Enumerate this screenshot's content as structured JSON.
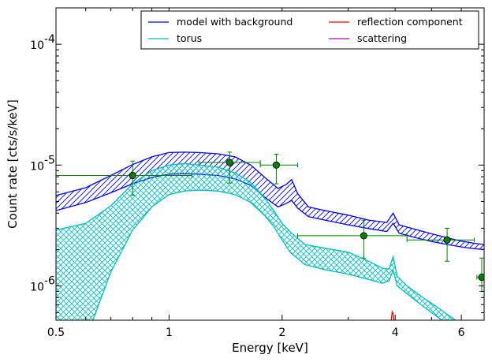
{
  "chart_data": {
    "type": "line",
    "xlabel": "Energy [keV]",
    "ylabel": "Count rate [cts/s/keV]",
    "xscale": "log",
    "yscale": "log",
    "xlim": [
      0.5,
      6.9
    ],
    "ylim": [
      5.2e-07,
      0.0002
    ],
    "xticks": [
      {
        "value": 0.5,
        "label": "0.5"
      },
      {
        "value": 1,
        "label": "1"
      },
      {
        "value": 2,
        "label": "2"
      },
      {
        "value": 4,
        "label": "4"
      },
      {
        "value": 6,
        "label": "6"
      }
    ],
    "yticks": [
      {
        "value": 1e-06,
        "base": "10",
        "exp": "-6"
      },
      {
        "value": 1e-05,
        "base": "10",
        "exp": "-5"
      },
      {
        "value": 0.0001,
        "base": "10",
        "exp": "-4"
      }
    ],
    "legend": {
      "placement": "top-right",
      "entries": [
        {
          "label": "model with background",
          "color": "#0000ff"
        },
        {
          "label": "torus",
          "color": "#00bfbf"
        },
        {
          "label": "reflection component",
          "color": "#ff0000"
        },
        {
          "label": "scattering",
          "color": "#bf00bf"
        }
      ]
    },
    "series": [
      {
        "color": "#0000ff",
        "hatch": "diagonal",
        "x": [
          0.5,
          0.6,
          0.7,
          0.8,
          0.9,
          1.0,
          1.1,
          1.2,
          1.35,
          1.5,
          1.65,
          1.8,
          1.95,
          2.05,
          2.12,
          2.2,
          2.35,
          2.6,
          3.0,
          3.4,
          3.8,
          3.95,
          4.1,
          4.5,
          5.0,
          5.5,
          6.0,
          6.5,
          6.9
        ],
        "upper": [
          5.6e-06,
          6.5e-06,
          8.2e-06,
          1.01e-05,
          1.17e-05,
          1.27e-05,
          1.28e-05,
          1.27e-05,
          1.24e-05,
          1.17e-05,
          1e-05,
          7.9e-06,
          6.4e-06,
          6.9e-06,
          7.6e-06,
          5.8e-06,
          4.5e-06,
          4.2e-06,
          3.85e-06,
          3.5e-06,
          3.35e-06,
          4e-06,
          3.2e-06,
          2.95e-06,
          2.7e-06,
          2.5e-06,
          2.35e-06,
          2.25e-06,
          2.2e-06
        ],
        "lower": [
          4.2e-06,
          4.9e-06,
          5.9e-06,
          7e-06,
          7.9e-06,
          8.4e-06,
          8.5e-06,
          8.4e-06,
          8.2e-06,
          7.7e-06,
          6.8e-06,
          5.4e-06,
          4.5e-06,
          4.8e-06,
          5.1e-06,
          4.4e-06,
          3.75e-06,
          3.5e-06,
          3.2e-06,
          2.98e-06,
          2.82e-06,
          3.3e-06,
          2.73e-06,
          2.52e-06,
          2.33e-06,
          2.2e-06,
          2.1e-06,
          2.03e-06,
          2e-06
        ]
      },
      {
        "color": "#00bfbf",
        "hatch": "cross",
        "x": [
          0.5,
          0.6,
          0.7,
          0.8,
          0.9,
          1.0,
          1.1,
          1.2,
          1.35,
          1.5,
          1.65,
          1.8,
          1.9,
          2.0,
          2.1,
          2.3,
          2.6,
          3.0,
          3.4,
          3.7,
          3.85,
          3.95,
          4.05,
          4.3,
          4.8,
          5.2,
          5.6,
          6.2,
          6.9
        ],
        "upper": [
          2.9e-06,
          3.3e-06,
          4.6e-06,
          7e-06,
          9e-06,
          1e-05,
          1.03e-05,
          1e-05,
          9.6e-06,
          8.6e-06,
          7.2e-06,
          5.3e-06,
          4.2e-06,
          3.3e-06,
          2.8e-06,
          2.2e-06,
          2.05e-06,
          1.9e-06,
          1.6e-06,
          1.4e-06,
          1.38e-06,
          1.75e-06,
          1.2e-06,
          1e-06,
          7.8e-07,
          6.6e-07,
          5.6e-07,
          4.5e-07,
          3.6e-07
        ],
        "lower": [
          5.6e-07,
          3.6e-07,
          1.3e-06,
          2.9e-06,
          4.5e-06,
          5.7e-06,
          6.1e-06,
          6.2e-06,
          6.1e-06,
          5.7e-06,
          4.9e-06,
          3.8e-06,
          3.1e-06,
          2.4e-06,
          1.9e-06,
          1.5e-06,
          1.36e-06,
          1.25e-06,
          1.13e-06,
          1.05e-06,
          1.1e-06,
          1.35e-06,
          1e-06,
          8.6e-07,
          6.6e-07,
          5.5e-07,
          4.6e-07,
          3.7e-07,
          3e-07
        ]
      },
      {
        "color": "#ff0000",
        "x": [
          3.88,
          3.91,
          3.93,
          3.95,
          3.97,
          3.99
        ],
        "y": [
          4.5e-07,
          5.4e-07,
          6.1e-07,
          5.9e-07,
          5.2e-07,
          4.5e-07
        ]
      }
    ],
    "data_points": {
      "color": "#008000",
      "points": [
        {
          "x": 0.8,
          "y": 8.2e-06,
          "xerr": [
            0.5,
            1.15
          ],
          "yerr": [
            5.6e-06,
            1.08e-05
          ]
        },
        {
          "x": 1.45,
          "y": 1.05e-05,
          "xerr": [
            1.2,
            1.75
          ],
          "yerr": [
            7.1e-06,
            1.28e-05
          ]
        },
        {
          "x": 1.93,
          "y": 1e-05,
          "xerr": [
            1.75,
            2.2
          ],
          "yerr": [
            7e-06,
            1.23e-05
          ]
        },
        {
          "x": 3.3,
          "y": 2.6e-06,
          "xerr": [
            2.2,
            4.3
          ],
          "yerr": [
            1.7e-06,
            3.5e-06
          ]
        },
        {
          "x": 5.5,
          "y": 2.4e-06,
          "xerr": [
            4.3,
            6.5
          ],
          "yerr": [
            1.6e-06,
            3e-06
          ]
        },
        {
          "x": 6.8,
          "y": 1.18e-06,
          "xerr": [
            6.6,
            7.1
          ],
          "yerr": [
            9e-07,
            1.7e-06
          ]
        }
      ]
    }
  }
}
